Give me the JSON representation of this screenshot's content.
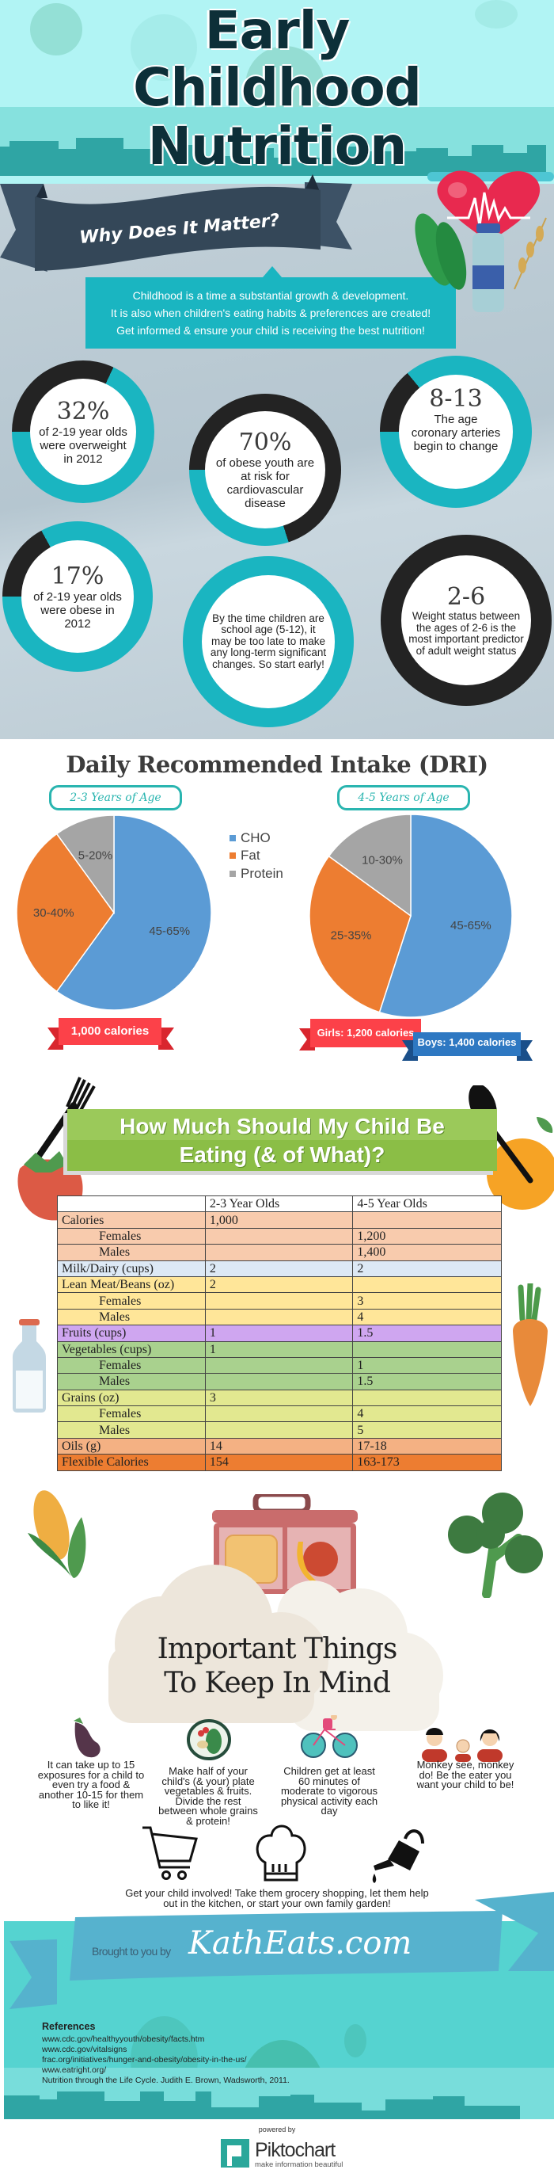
{
  "header": {
    "title_lines": [
      "Early",
      "Childhood",
      "Nutrition"
    ]
  },
  "why": {
    "ribbon_title": "Why Does It Matter?",
    "intro_lines": [
      "Childhood is a time a substantial growth & development.",
      "It is also when children's eating habits & preferences are created!",
      "Get informed & ensure your child is receiving the best nutrition!"
    ]
  },
  "stats": [
    {
      "big": "32%",
      "text": "of 2-19 year olds were overweight in 2012",
      "ring_fill_pct": 32
    },
    {
      "big": "70%",
      "text": "of obese youth are at risk for cardiovascular disease",
      "ring_fill_pct": 70
    },
    {
      "big": "8-13",
      "text": "The age coronary arteries begin to change",
      "ring_fill_pct": 14
    },
    {
      "big": "17%",
      "text": "of 2-19 year olds were obese in 2012",
      "ring_fill_pct": 17
    },
    {
      "big": "",
      "text": "By the time children are school age (5-12), it may be too late to make any long-term significant changes. So start early!",
      "ring_fill_pct": 0
    },
    {
      "big": "2-6",
      "text": "Weight status between the ages of 2-6 is the most important predictor of adult weight status",
      "ring_fill_pct": 100
    }
  ],
  "colors": {
    "teal": "#1ab5c1",
    "dark": "#232323",
    "cho": "#5b9bd5",
    "fat": "#ed7d31",
    "protein": "#a5a5a5",
    "red_ribbon": "#fc4149",
    "blue_ribbon": "#2e78c2"
  },
  "chart_data": [
    {
      "type": "pie",
      "title": "Daily Recommended Intake (DRI)",
      "group_label": "2-3 Years of Age",
      "categories": [
        "CHO",
        "Fat",
        "Protein"
      ],
      "values": [
        60,
        30,
        10
      ],
      "data_labels": [
        "45-65%",
        "30-40%",
        "5-20%"
      ],
      "legend_placement": "right",
      "calories": "1,000 calories"
    },
    {
      "type": "pie",
      "title": "Daily Recommended Intake (DRI)",
      "group_label": "4-5 Years of Age",
      "categories": [
        "CHO",
        "Fat",
        "Protein"
      ],
      "values": [
        55,
        30,
        15
      ],
      "data_labels": [
        "45-65%",
        "25-35%",
        "10-30%"
      ],
      "legend_placement": "left",
      "calories_girls": "Girls: 1,200 calories",
      "calories_boys": "Boys: 1,400 calories"
    }
  ],
  "dri": {
    "title": "Daily Recommended Intake (DRI)",
    "legend": [
      "CHO",
      "Fat",
      "Protein"
    ]
  },
  "eating": {
    "title_lines": [
      "How Much Should My Child Be",
      "Eating (& of What)?"
    ],
    "columns": [
      "",
      "2-3 Year Olds",
      "4-5 Year Olds"
    ],
    "rows": [
      {
        "label": "Calories",
        "a": "1,000",
        "b": "",
        "sub": false,
        "color": "#f8cbad"
      },
      {
        "label": "Females",
        "a": "",
        "b": "1,200",
        "sub": true,
        "color": "#f8cbad"
      },
      {
        "label": "Males",
        "a": "",
        "b": "1,400",
        "sub": true,
        "color": "#f8cbad"
      },
      {
        "label": "Milk/Dairy (cups)",
        "a": "2",
        "b": "2",
        "sub": false,
        "color": "#dde9f5"
      },
      {
        "label": "Lean Meat/Beans (oz)",
        "a": "2",
        "b": "",
        "sub": false,
        "color": "#ffe699"
      },
      {
        "label": "Females",
        "a": "",
        "b": "3",
        "sub": true,
        "color": "#ffe699"
      },
      {
        "label": "Males",
        "a": "",
        "b": "4",
        "sub": true,
        "color": "#ffe699"
      },
      {
        "label": "Fruits (cups)",
        "a": "1",
        "b": "1.5",
        "sub": false,
        "color": "#cfa6f0"
      },
      {
        "label": "Vegetables (cups)",
        "a": "1",
        "b": "",
        "sub": false,
        "color": "#a9d18e"
      },
      {
        "label": "Females",
        "a": "",
        "b": "1",
        "sub": true,
        "color": "#a9d18e"
      },
      {
        "label": "Males",
        "a": "",
        "b": "1.5",
        "sub": true,
        "color": "#a9d18e"
      },
      {
        "label": "Grains (oz)",
        "a": "3",
        "b": "",
        "sub": false,
        "color": "#e2e890"
      },
      {
        "label": "Females",
        "a": "",
        "b": "4",
        "sub": true,
        "color": "#e2e890"
      },
      {
        "label": "Males",
        "a": "",
        "b": "5",
        "sub": true,
        "color": "#e2e890"
      },
      {
        "label": "Oils (g)",
        "a": "14",
        "b": "17-18",
        "sub": false,
        "color": "#f4b183"
      },
      {
        "label": "Flexible Calories",
        "a": "154",
        "b": "163-173",
        "sub": false,
        "color": "#ed7d31"
      }
    ]
  },
  "keep": {
    "title_lines": [
      "Important Things",
      "To Keep In Mind"
    ],
    "tips": [
      "It can take up to 15 exposures for a child to even try a food & another 10-15 for them to like it!",
      "Make half of your child's (& your) plate vegetables & fruits. Divide the rest between whole grains & protein!",
      "Children get at least 60 minutes of moderate to vigorous physical activity each day",
      "Monkey see, monkey do! Be the eater you want your child to be!"
    ],
    "involve": [
      "Get your child involved! Take them grocery shopping, let them help",
      "out in the kitchen, or start your own family garden!"
    ]
  },
  "footer": {
    "brought": "Brought to you by",
    "brand": "KathEats.com",
    "refs_title": "References",
    "refs": [
      "www.cdc.gov/healthyyouth/obesity/facts.htm",
      "www.cdc.gov/vitalsigns",
      "frac.org/initiatives/hunger-and-obesity/obesity-in-the-us/",
      "www.eatright.org/",
      "Nutrition through the Life Cycle. Judith E. Brown, Wadsworth, 2011."
    ],
    "powered": "powered by",
    "pikto": "Piktochart",
    "pikto_tag": "make information beautiful"
  }
}
